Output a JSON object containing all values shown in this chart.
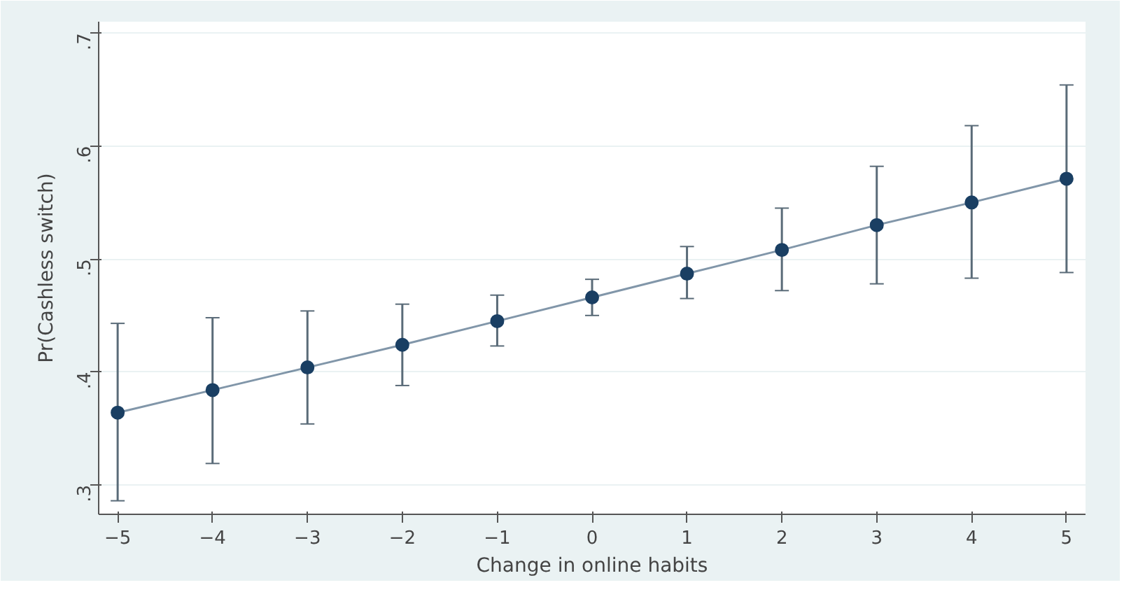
{
  "chart_data": {
    "type": "line",
    "xlabel": "Change in online habits",
    "ylabel": "Pr(Cashless switch)",
    "x": [
      -5,
      -4,
      -3,
      -2,
      -1,
      0,
      1,
      2,
      3,
      4,
      5
    ],
    "series": [
      {
        "color": "#1a3f63",
        "values": [
          0.364,
          0.384,
          0.404,
          0.424,
          0.445,
          0.466,
          0.487,
          0.508,
          0.53,
          0.55,
          0.571
        ],
        "errors": [
          [
            0.286,
            0.443
          ],
          [
            0.319,
            0.448
          ],
          [
            0.354,
            0.454
          ],
          [
            0.388,
            0.46
          ],
          [
            0.423,
            0.468
          ],
          [
            0.45,
            0.482
          ],
          [
            0.465,
            0.511
          ],
          [
            0.472,
            0.545
          ],
          [
            0.478,
            0.582
          ],
          [
            0.483,
            0.618
          ],
          [
            0.488,
            0.654
          ]
        ]
      }
    ],
    "xlim": [
      -5.2,
      5.2
    ],
    "ylim": [
      0.274,
      0.71
    ],
    "xticks": [
      -5,
      -4,
      -3,
      -2,
      -1,
      0,
      1,
      2,
      3,
      4,
      5
    ],
    "yticks": [
      {
        "value": 0.3,
        "label": ".3"
      },
      {
        "value": 0.4,
        "label": ".4"
      },
      {
        "value": 0.5,
        "label": ".5"
      },
      {
        "value": 0.6,
        "label": ".6"
      },
      {
        "value": 0.7,
        "label": ".7"
      }
    ],
    "grid": "y",
    "marker": "circle",
    "line_style": "solid"
  }
}
